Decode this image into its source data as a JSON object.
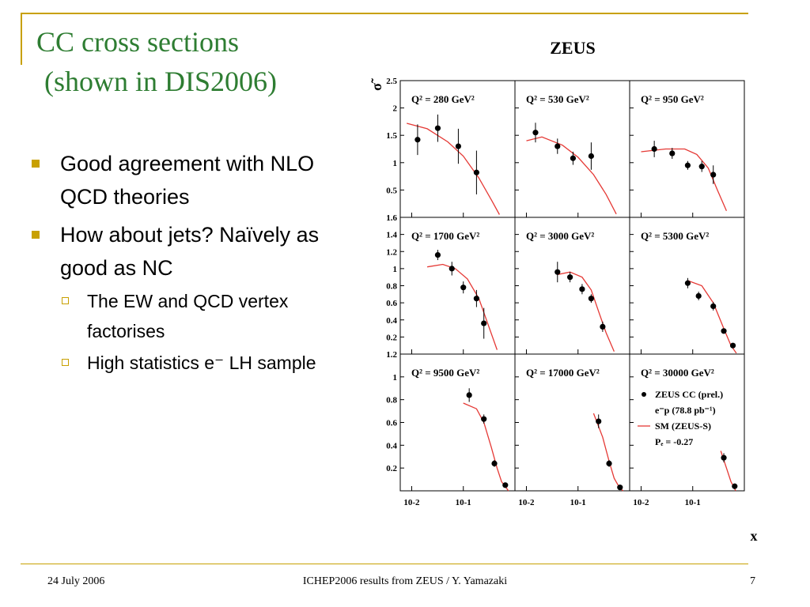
{
  "slide": {
    "title_line1": "CC cross sections",
    "title_line2": "(shown in DIS2006)",
    "accent_color": "#c8a000",
    "title_color": "#2e7d32"
  },
  "bullets": [
    {
      "text": "Good agreement with NLO QCD theories"
    },
    {
      "text": "How about jets? Naïvely as good as NC"
    }
  ],
  "sub_bullets": [
    {
      "text": "The EW and QCD vertex factorises"
    },
    {
      "text": "High statistics e⁻ LH sample"
    }
  ],
  "footer": {
    "date": "24 July 2006",
    "center": "ICHEP2006 results from ZEUS / Y. Yamazaki",
    "page": "7"
  },
  "chart_data": {
    "type": "scatter",
    "title": "ZEUS",
    "xlabel": "x",
    "ylabel": "σ̃",
    "x_scale": "log",
    "x_ticks": [
      "10-2",
      "10-1"
    ],
    "data_color": "#000000",
    "curve_color": "#e53935",
    "legend": {
      "entries": [
        {
          "label": "ZEUS CC (prel.)",
          "marker": "filled-circle"
        },
        {
          "label": "e⁻p (78.8 pb⁻¹)",
          "marker": "none"
        },
        {
          "label": "SM (ZEUS-S)",
          "marker": "line"
        },
        {
          "label": "Pₑ = -0.27",
          "marker": "none"
        }
      ],
      "placement": "bottom-right-panel"
    },
    "rows": [
      {
        "ylim": [
          0,
          2.5
        ],
        "yticks": [
          0.5,
          1,
          1.5,
          2,
          2.5
        ],
        "ytick_labels": [
          "0.5",
          "1",
          "1.5",
          "2",
          "2.5"
        ],
        "panels": [
          {
            "label": "Q² = 280 GeV²",
            "points": [
              {
                "x": 0.013,
                "y": 1.42,
                "err": 0.28
              },
              {
                "x": 0.032,
                "y": 1.63,
                "err": 0.25
              },
              {
                "x": 0.08,
                "y": 1.3,
                "err": 0.32
              },
              {
                "x": 0.18,
                "y": 0.82,
                "err": 0.4
              }
            ],
            "curve": [
              [
                0.008,
                1.72
              ],
              [
                0.02,
                1.62
              ],
              [
                0.05,
                1.38
              ],
              [
                0.1,
                1.12
              ],
              [
                0.2,
                0.72
              ],
              [
                0.35,
                0.32
              ],
              [
                0.5,
                0.05
              ]
            ]
          },
          {
            "label": "Q² = 530 GeV²",
            "points": [
              {
                "x": 0.015,
                "y": 1.55,
                "err": 0.18
              },
              {
                "x": 0.04,
                "y": 1.3,
                "err": 0.14
              },
              {
                "x": 0.08,
                "y": 1.08,
                "err": 0.12
              },
              {
                "x": 0.18,
                "y": 1.12,
                "err": 0.25
              }
            ],
            "curve": [
              [
                0.01,
                1.4
              ],
              [
                0.02,
                1.47
              ],
              [
                0.05,
                1.32
              ],
              [
                0.1,
                1.1
              ],
              [
                0.2,
                0.78
              ],
              [
                0.35,
                0.42
              ],
              [
                0.55,
                0.06
              ]
            ]
          },
          {
            "label": "Q² = 950 GeV²",
            "points": [
              {
                "x": 0.018,
                "y": 1.25,
                "err": 0.15
              },
              {
                "x": 0.04,
                "y": 1.17,
                "err": 0.1
              },
              {
                "x": 0.08,
                "y": 0.95,
                "err": 0.08
              },
              {
                "x": 0.15,
                "y": 0.93,
                "err": 0.1
              },
              {
                "x": 0.25,
                "y": 0.78,
                "err": 0.17
              }
            ],
            "curve": [
              [
                0.01,
                1.2
              ],
              [
                0.03,
                1.25
              ],
              [
                0.07,
                1.25
              ],
              [
                0.12,
                1.15
              ],
              [
                0.2,
                0.9
              ],
              [
                0.3,
                0.5
              ],
              [
                0.45,
                0.12
              ]
            ]
          }
        ]
      },
      {
        "ylim": [
          0,
          1.6
        ],
        "yticks": [
          0.2,
          0.4,
          0.6,
          0.8,
          1,
          1.2,
          1.4,
          1.6
        ],
        "ytick_labels": [
          "0.2",
          "0.4",
          "0.6",
          "0.8",
          "1",
          "1.2",
          "1.4",
          "1.6"
        ],
        "panels": [
          {
            "label": "Q² = 1700 GeV²",
            "points": [
              {
                "x": 0.032,
                "y": 1.16,
                "err": 0.06
              },
              {
                "x": 0.06,
                "y": 1.0,
                "err": 0.08
              },
              {
                "x": 0.1,
                "y": 0.78,
                "err": 0.07
              },
              {
                "x": 0.18,
                "y": 0.65,
                "err": 0.1
              },
              {
                "x": 0.25,
                "y": 0.36,
                "err": 0.18
              }
            ],
            "curve": [
              [
                0.02,
                1.02
              ],
              [
                0.04,
                1.05
              ],
              [
                0.07,
                1.0
              ],
              [
                0.12,
                0.88
              ],
              [
                0.2,
                0.65
              ],
              [
                0.3,
                0.35
              ],
              [
                0.45,
                0.05
              ]
            ]
          },
          {
            "label": "Q² = 3000 GeV²",
            "points": [
              {
                "x": 0.04,
                "y": 0.96,
                "err": 0.12
              },
              {
                "x": 0.07,
                "y": 0.9,
                "err": 0.06
              },
              {
                "x": 0.12,
                "y": 0.76,
                "err": 0.06
              },
              {
                "x": 0.18,
                "y": 0.65,
                "err": 0.05
              },
              {
                "x": 0.3,
                "y": 0.32,
                "err": 0.06
              }
            ],
            "curve": [
              [
                0.04,
                0.93
              ],
              [
                0.07,
                0.96
              ],
              [
                0.12,
                0.9
              ],
              [
                0.18,
                0.75
              ],
              [
                0.25,
                0.5
              ],
              [
                0.35,
                0.25
              ],
              [
                0.5,
                0.03
              ]
            ]
          },
          {
            "label": "Q² = 5300 GeV²",
            "points": [
              {
                "x": 0.08,
                "y": 0.83,
                "err": 0.06
              },
              {
                "x": 0.13,
                "y": 0.68,
                "err": 0.05
              },
              {
                "x": 0.25,
                "y": 0.56,
                "err": 0.05
              },
              {
                "x": 0.4,
                "y": 0.27,
                "err": 0.03
              },
              {
                "x": 0.6,
                "y": 0.1,
                "err": 0.02
              }
            ],
            "curve": [
              [
                0.08,
                0.86
              ],
              [
                0.15,
                0.8
              ],
              [
                0.25,
                0.6
              ],
              [
                0.4,
                0.3
              ],
              [
                0.55,
                0.1
              ],
              [
                0.7,
                0.01
              ]
            ]
          }
        ]
      },
      {
        "ylim": [
          0,
          1.2
        ],
        "yticks": [
          0.2,
          0.4,
          0.6,
          0.8,
          1,
          1.2
        ],
        "ytick_labels": [
          "0.2",
          "0.4",
          "0.6",
          "0.8",
          "1",
          "1.2"
        ],
        "panels": [
          {
            "label": "Q² = 9500 GeV²",
            "points": [
              {
                "x": 0.13,
                "y": 0.84,
                "err": 0.06
              },
              {
                "x": 0.25,
                "y": 0.63,
                "err": 0.04
              },
              {
                "x": 0.4,
                "y": 0.24,
                "err": 0.03
              },
              {
                "x": 0.65,
                "y": 0.05,
                "err": 0.01
              }
            ],
            "curve": [
              [
                0.1,
                0.77
              ],
              [
                0.18,
                0.72
              ],
              [
                0.25,
                0.6
              ],
              [
                0.35,
                0.38
              ],
              [
                0.45,
                0.2
              ],
              [
                0.55,
                0.08
              ],
              [
                0.75,
                0.0
              ]
            ]
          },
          {
            "label": "Q² = 17000 GeV²",
            "points": [
              {
                "x": 0.25,
                "y": 0.61,
                "err": 0.06
              },
              {
                "x": 0.4,
                "y": 0.24,
                "err": 0.03
              },
              {
                "x": 0.65,
                "y": 0.03,
                "err": 0.01
              }
            ],
            "curve": [
              [
                0.2,
                0.68
              ],
              [
                0.3,
                0.47
              ],
              [
                0.4,
                0.26
              ],
              [
                0.5,
                0.11
              ],
              [
                0.65,
                0.02
              ],
              [
                0.75,
                0.0
              ]
            ]
          },
          {
            "label": "Q² = 30000 GeV²",
            "points": [
              {
                "x": 0.4,
                "y": 0.29,
                "err": 0.04
              },
              {
                "x": 0.65,
                "y": 0.04,
                "err": 0.01
              }
            ],
            "curve": [
              [
                0.35,
                0.35
              ],
              [
                0.45,
                0.2
              ],
              [
                0.55,
                0.08
              ],
              [
                0.68,
                0.0
              ]
            ]
          }
        ]
      }
    ]
  }
}
